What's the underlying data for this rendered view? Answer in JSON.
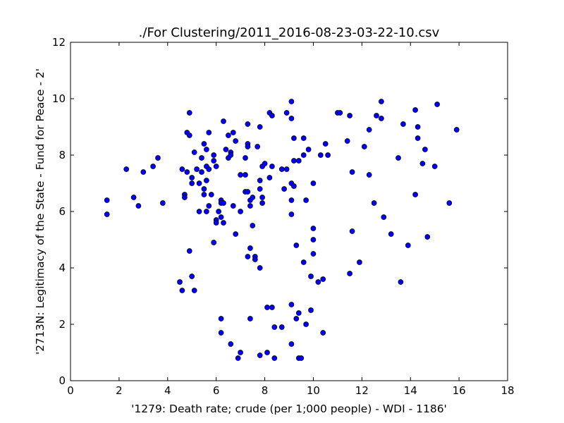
{
  "chart_data": {
    "type": "scatter",
    "title": "./For Clustering/2011_2016-08-23-03-22-10.csv",
    "xlabel": "'1279: Death rate; crude  (per 1;000 people) - WDI - 1186'",
    "ylabel": "'2713N: Legitimacy of the State - Fund for Peace - 2'",
    "xlim": [
      0,
      18
    ],
    "ylim": [
      0,
      12
    ],
    "xticks": [
      "0",
      "2",
      "4",
      "6",
      "8",
      "10",
      "12",
      "14",
      "16",
      "18"
    ],
    "yticks": [
      "0",
      "2",
      "4",
      "6",
      "8",
      "10",
      "12"
    ],
    "grid": false,
    "marker_color": "#0000ff",
    "points": [
      [
        1.5,
        6.4
      ],
      [
        1.5,
        5.9
      ],
      [
        2.3,
        7.5
      ],
      [
        2.6,
        6.5
      ],
      [
        2.8,
        6.2
      ],
      [
        3.0,
        7.4
      ],
      [
        3.4,
        7.6
      ],
      [
        3.6,
        7.9
      ],
      [
        3.8,
        6.3
      ],
      [
        4.5,
        3.5
      ],
      [
        4.6,
        3.2
      ],
      [
        4.6,
        7.5
      ],
      [
        4.7,
        6.6
      ],
      [
        4.7,
        6.5
      ],
      [
        4.8,
        7.4
      ],
      [
        4.8,
        8.8
      ],
      [
        4.9,
        8.7
      ],
      [
        4.9,
        9.5
      ],
      [
        4.9,
        4.6
      ],
      [
        5.0,
        7.0
      ],
      [
        5.0,
        7.2
      ],
      [
        5.0,
        3.7
      ],
      [
        5.1,
        3.2
      ],
      [
        5.1,
        8.1
      ],
      [
        5.2,
        7.5
      ],
      [
        5.3,
        7.0
      ],
      [
        5.3,
        6.0
      ],
      [
        5.4,
        7.9
      ],
      [
        5.4,
        7.4
      ],
      [
        5.5,
        8.4
      ],
      [
        5.5,
        6.8
      ],
      [
        5.5,
        6.6
      ],
      [
        5.6,
        8.2
      ],
      [
        5.6,
        7.6
      ],
      [
        5.6,
        7.1
      ],
      [
        5.6,
        6.0
      ],
      [
        5.7,
        7.5
      ],
      [
        5.7,
        6.2
      ],
      [
        5.7,
        8.8
      ],
      [
        5.8,
        6.6
      ],
      [
        5.9,
        8.0
      ],
      [
        5.9,
        7.8
      ],
      [
        5.9,
        4.9
      ],
      [
        6.0,
        5.7
      ],
      [
        6.0,
        5.6
      ],
      [
        6.0,
        7.6
      ],
      [
        6.1,
        6.0
      ],
      [
        6.2,
        5.8
      ],
      [
        6.2,
        6.4
      ],
      [
        6.2,
        6.3
      ],
      [
        6.2,
        2.2
      ],
      [
        6.2,
        1.7
      ],
      [
        6.3,
        9.2
      ],
      [
        6.3,
        6.3
      ],
      [
        6.3,
        5.6
      ],
      [
        6.4,
        8.2
      ],
      [
        6.5,
        8.7
      ],
      [
        6.5,
        7.9
      ],
      [
        6.6,
        8.1
      ],
      [
        6.6,
        8.0
      ],
      [
        6.6,
        1.3
      ],
      [
        6.7,
        8.8
      ],
      [
        6.7,
        6.2
      ],
      [
        6.8,
        8.5
      ],
      [
        6.8,
        5.2
      ],
      [
        6.9,
        0.8
      ],
      [
        7.0,
        7.3
      ],
      [
        7.0,
        6.0
      ],
      [
        7.0,
        1.0
      ],
      [
        7.2,
        7.9
      ],
      [
        7.2,
        7.3
      ],
      [
        7.2,
        6.7
      ],
      [
        7.3,
        9.1
      ],
      [
        7.3,
        8.4
      ],
      [
        7.3,
        8.3
      ],
      [
        7.3,
        6.7
      ],
      [
        7.3,
        4.4
      ],
      [
        7.4,
        6.4
      ],
      [
        7.4,
        6.2
      ],
      [
        7.4,
        4.7
      ],
      [
        7.4,
        2.2
      ],
      [
        7.5,
        6.5
      ],
      [
        7.5,
        5.5
      ],
      [
        7.6,
        4.4
      ],
      [
        7.6,
        4.3
      ],
      [
        7.7,
        8.3
      ],
      [
        7.8,
        9.0
      ],
      [
        7.8,
        7.1
      ],
      [
        7.8,
        6.8
      ],
      [
        7.8,
        4.0
      ],
      [
        7.8,
        0.9
      ],
      [
        7.9,
        7.6
      ],
      [
        7.9,
        6.5
      ],
      [
        7.9,
        6.3
      ],
      [
        8.0,
        7.7
      ],
      [
        8.1,
        2.6
      ],
      [
        8.1,
        1.0
      ],
      [
        8.2,
        9.5
      ],
      [
        8.2,
        7.2
      ],
      [
        8.3,
        9.4
      ],
      [
        8.3,
        7.6
      ],
      [
        8.3,
        2.6
      ],
      [
        8.4,
        1.9
      ],
      [
        8.4,
        0.8
      ],
      [
        8.7,
        7.5
      ],
      [
        8.7,
        1.9
      ],
      [
        8.8,
        6.8
      ],
      [
        8.9,
        9.5
      ],
      [
        8.9,
        7.5
      ],
      [
        9.1,
        9.9
      ],
      [
        9.1,
        9.3
      ],
      [
        9.1,
        7.0
      ],
      [
        9.1,
        6.4
      ],
      [
        9.1,
        5.9
      ],
      [
        9.1,
        2.7
      ],
      [
        9.1,
        1.3
      ],
      [
        9.2,
        8.6
      ],
      [
        9.2,
        7.8
      ],
      [
        9.2,
        6.9
      ],
      [
        9.3,
        4.8
      ],
      [
        9.3,
        2.2
      ],
      [
        9.4,
        7.8
      ],
      [
        9.4,
        2.4
      ],
      [
        9.4,
        0.8
      ],
      [
        9.5,
        0.8
      ],
      [
        9.6,
        8.6
      ],
      [
        9.6,
        8.0
      ],
      [
        9.6,
        4.2
      ],
      [
        9.7,
        6.4
      ],
      [
        9.7,
        2.0
      ],
      [
        9.8,
        8.2
      ],
      [
        9.9,
        3.7
      ],
      [
        9.9,
        2.5
      ],
      [
        10.0,
        7.0
      ],
      [
        10.0,
        5.4
      ],
      [
        10.0,
        5.0
      ],
      [
        10.0,
        4.5
      ],
      [
        10.2,
        3.5
      ],
      [
        10.3,
        8.0
      ],
      [
        10.4,
        3.6
      ],
      [
        10.4,
        1.7
      ],
      [
        10.5,
        8.4
      ],
      [
        10.6,
        8.0
      ],
      [
        11.0,
        9.5
      ],
      [
        11.1,
        9.5
      ],
      [
        11.4,
        8.5
      ],
      [
        11.5,
        9.4
      ],
      [
        11.5,
        3.8
      ],
      [
        11.6,
        7.4
      ],
      [
        11.6,
        5.3
      ],
      [
        11.9,
        4.2
      ],
      [
        12.1,
        8.3
      ],
      [
        12.3,
        8.9
      ],
      [
        12.3,
        7.3
      ],
      [
        12.5,
        6.3
      ],
      [
        12.6,
        9.4
      ],
      [
        12.8,
        9.3
      ],
      [
        12.8,
        9.9
      ],
      [
        12.9,
        5.8
      ],
      [
        13.2,
        5.2
      ],
      [
        13.5,
        7.9
      ],
      [
        13.6,
        3.5
      ],
      [
        13.7,
        9.1
      ],
      [
        13.9,
        4.8
      ],
      [
        14.2,
        9.6
      ],
      [
        14.2,
        6.6
      ],
      [
        14.3,
        9.0
      ],
      [
        14.3,
        8.6
      ],
      [
        14.5,
        7.7
      ],
      [
        14.6,
        8.2
      ],
      [
        14.7,
        5.1
      ],
      [
        15.0,
        7.6
      ],
      [
        15.1,
        9.8
      ],
      [
        15.6,
        6.3
      ],
      [
        15.9,
        8.9
      ]
    ]
  }
}
